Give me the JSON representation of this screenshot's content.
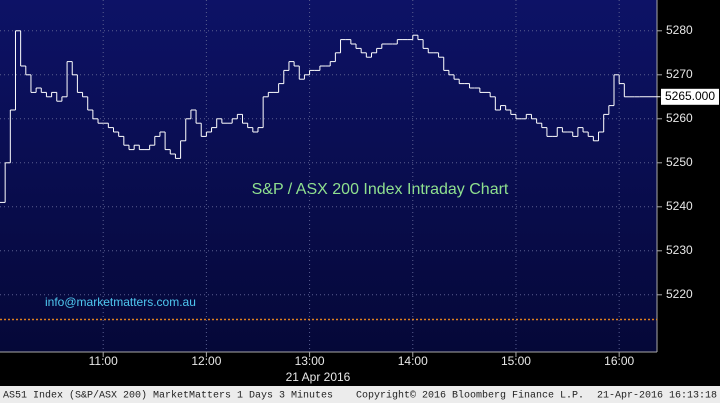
{
  "chart_data": {
    "type": "step",
    "title": "S&P / ASX 200 Index Intraday Chart",
    "annotation": "info@marketmatters.com.au",
    "date_label": "21 Apr 2016",
    "footer_left": "AS51 Index (S&P/ASX 200) MarketMatters 1 Days 3 Minutes",
    "footer_center": "Copyright© 2016 Bloomberg Finance L.P.",
    "footer_right": "21-Apr-2016 16:13:18",
    "color": "#ffffff",
    "grid": true,
    "x": [
      "10:00",
      "10:03",
      "10:06",
      "10:09",
      "10:12",
      "10:15",
      "10:18",
      "10:21",
      "10:24",
      "10:27",
      "10:30",
      "10:33",
      "10:36",
      "10:39",
      "10:42",
      "10:45",
      "10:48",
      "10:51",
      "10:54",
      "10:57",
      "11:00",
      "11:03",
      "11:06",
      "11:09",
      "11:12",
      "11:15",
      "11:18",
      "11:21",
      "11:24",
      "11:27",
      "11:30",
      "11:33",
      "11:36",
      "11:39",
      "11:42",
      "11:45",
      "11:48",
      "11:51",
      "11:54",
      "11:57",
      "12:00",
      "12:03",
      "12:06",
      "12:09",
      "12:12",
      "12:15",
      "12:18",
      "12:21",
      "12:24",
      "12:27",
      "12:30",
      "12:33",
      "12:36",
      "12:39",
      "12:42",
      "12:45",
      "12:48",
      "12:51",
      "12:54",
      "12:57",
      "13:00",
      "13:03",
      "13:06",
      "13:09",
      "13:12",
      "13:15",
      "13:18",
      "13:21",
      "13:24",
      "13:27",
      "13:30",
      "13:33",
      "13:36",
      "13:39",
      "13:42",
      "13:45",
      "13:48",
      "13:51",
      "13:54",
      "13:57",
      "14:00",
      "14:03",
      "14:06",
      "14:09",
      "14:12",
      "14:15",
      "14:18",
      "14:21",
      "14:24",
      "14:27",
      "14:30",
      "14:33",
      "14:36",
      "14:39",
      "14:42",
      "14:45",
      "14:48",
      "14:51",
      "14:54",
      "14:57",
      "15:00",
      "15:03",
      "15:06",
      "15:09",
      "15:12",
      "15:15",
      "15:18",
      "15:21",
      "15:24",
      "15:27",
      "15:30",
      "15:33",
      "15:36",
      "15:39",
      "15:42",
      "15:45",
      "15:48",
      "15:51",
      "15:54",
      "15:57",
      "16:00",
      "16:03",
      "16:06",
      "16:09",
      "16:12"
    ],
    "values": [
      5241,
      5250,
      5262,
      5280,
      5272,
      5270,
      5266,
      5267,
      5266,
      5265,
      5266,
      5264,
      5265,
      5273,
      5270,
      5266,
      5265,
      5262,
      5260,
      5259,
      5259,
      5258,
      5257,
      5256,
      5254,
      5253,
      5254,
      5253,
      5253,
      5254,
      5256,
      5257,
      5253,
      5252,
      5251,
      5255,
      5260,
      5262,
      5259,
      5256,
      5257,
      5258,
      5260,
      5259,
      5259,
      5260,
      5261,
      5259,
      5258,
      5257,
      5258,
      5265,
      5266,
      5266,
      5268,
      5271,
      5273,
      5272,
      5269,
      5270,
      5271,
      5271,
      5272,
      5272,
      5273,
      5275,
      5278,
      5278,
      5277,
      5276,
      5275,
      5274,
      5275,
      5276,
      5277,
      5277,
      5277,
      5278,
      5278,
      5278,
      5279,
      5278,
      5276,
      5275,
      5275,
      5274,
      5271,
      5270,
      5269,
      5268,
      5268,
      5267,
      5267,
      5266,
      5266,
      5265,
      5262,
      5263,
      5262,
      5261,
      5260,
      5260,
      5261,
      5260,
      5259,
      5258,
      5256,
      5256,
      5258,
      5257,
      5257,
      5256,
      5258,
      5257,
      5256,
      5255,
      5257,
      5261,
      5263,
      5270,
      5268,
      5265,
      5265,
      5265,
      5265
    ],
    "xlim": [
      "10:00",
      "16:22"
    ],
    "xticks": [
      "11:00",
      "12:00",
      "13:00",
      "14:00",
      "15:00",
      "16:00"
    ],
    "ylim": [
      5207,
      5287
    ],
    "yticks": [
      5220,
      5230,
      5240,
      5250,
      5260,
      5270,
      5280
    ],
    "last_price": {
      "value": 5265,
      "label": "5265.000"
    },
    "reference_line": {
      "value": 5214.4,
      "color": "#e08020"
    }
  }
}
